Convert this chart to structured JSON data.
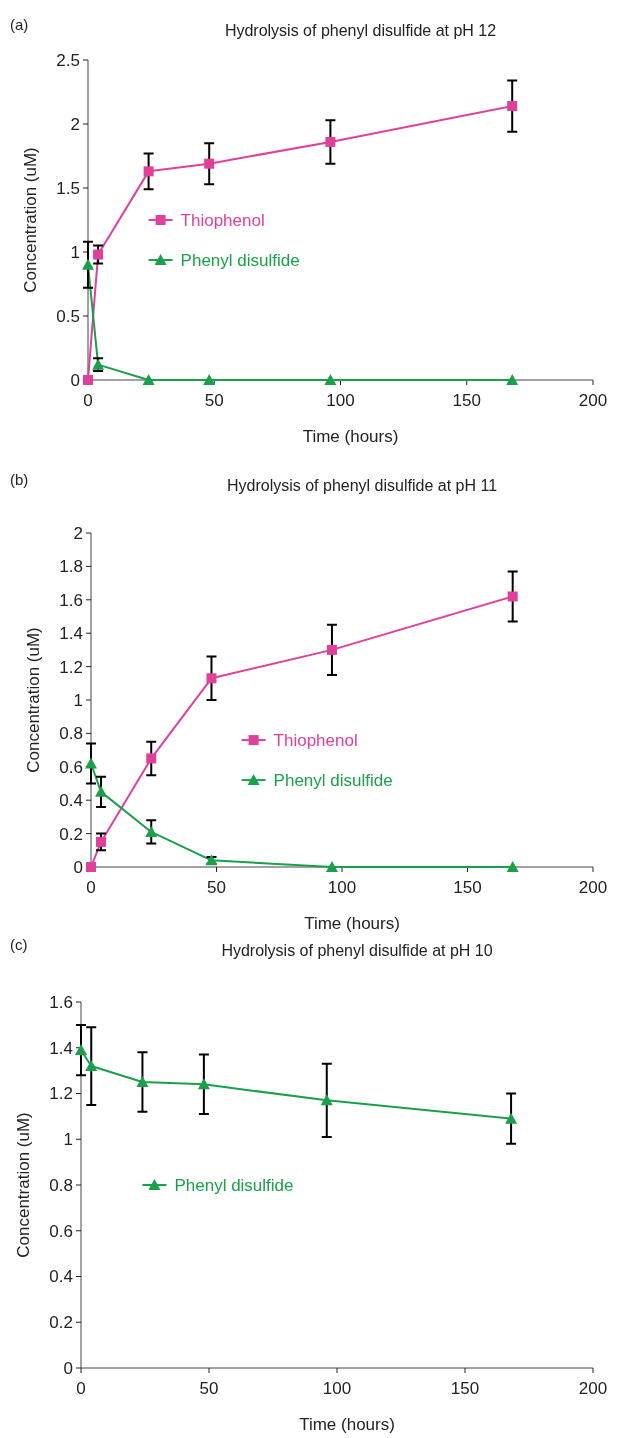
{
  "chart_data": [
    {
      "type": "line",
      "title": "Hydrolysis of phenyl disulfide at pH 12",
      "xlabel": "Time (hours)",
      "ylabel": "Concentration (uM)",
      "annotations": [
        "(a)"
      ],
      "x": [
        0,
        4,
        24,
        48,
        96,
        168
      ],
      "xlim": [
        0,
        200
      ],
      "xticks": [
        0,
        50,
        100,
        150,
        200
      ],
      "ylim": [
        0,
        2.5
      ],
      "yticks": [
        0,
        0.5,
        1,
        1.5,
        2,
        2.5
      ],
      "legend": "center left",
      "line_style": "solid",
      "grid": false,
      "series": [
        {
          "name": "Thiophenol",
          "color": "#e0409a",
          "marker": "square",
          "values": [
            0,
            0.98,
            1.63,
            1.69,
            1.86,
            2.14
          ],
          "errors": [
            null,
            0.07,
            0.14,
            0.16,
            0.17,
            0.2
          ]
        },
        {
          "name": "Phenyl disulfide",
          "color": "#1aa04a",
          "marker": "triangle",
          "values": [
            0.9,
            0.12,
            0,
            0,
            0,
            0
          ],
          "errors": [
            0.18,
            0.05,
            null,
            null,
            null,
            null
          ]
        }
      ]
    },
    {
      "type": "line",
      "title": "Hydrolysis of phenyl disulfide at pH 11",
      "xlabel": "Time (hours)",
      "ylabel": "Concentration (uM)",
      "annotations": [
        "(b)"
      ],
      "x": [
        0,
        4,
        24,
        48,
        96,
        168
      ],
      "xlim": [
        0,
        200
      ],
      "xticks": [
        0,
        50,
        100,
        150,
        200
      ],
      "ylim": [
        0,
        2
      ],
      "yticks": [
        0,
        0.2,
        0.4,
        0.6,
        0.8,
        1,
        1.2,
        1.4,
        1.6,
        1.8,
        2
      ],
      "legend": "center",
      "line_style": "solid",
      "grid": false,
      "series": [
        {
          "name": "Thiophenol",
          "color": "#e0409a",
          "marker": "square",
          "values": [
            0,
            0.15,
            0.65,
            1.13,
            1.3,
            1.62
          ],
          "errors": [
            null,
            0.05,
            0.1,
            0.13,
            0.15,
            0.15
          ]
        },
        {
          "name": "Phenyl disulfide",
          "color": "#1aa04a",
          "marker": "triangle",
          "values": [
            0.62,
            0.45,
            0.21,
            0.04,
            0,
            0
          ],
          "errors": [
            0.12,
            0.09,
            0.07,
            0.02,
            null,
            null
          ]
        }
      ]
    },
    {
      "type": "line",
      "title": "Hydrolysis of phenyl disulfide at pH 10",
      "xlabel": "Time (hours)",
      "ylabel": "Concentration (uM)",
      "annotations": [
        "(c)"
      ],
      "x": [
        0,
        4,
        24,
        48,
        96,
        168
      ],
      "xlim": [
        0,
        200
      ],
      "xticks": [
        0,
        50,
        100,
        150,
        200
      ],
      "ylim": [
        0,
        1.6
      ],
      "yticks": [
        0,
        0.2,
        0.4,
        0.6,
        0.8,
        1,
        1.2,
        1.4,
        1.6
      ],
      "legend": "center left",
      "line_style": "solid",
      "grid": false,
      "series": [
        {
          "name": "Phenyl disulfide",
          "color": "#1aa04a",
          "marker": "triangle",
          "values": [
            1.39,
            1.32,
            1.25,
            1.24,
            1.17,
            1.09
          ],
          "errors": [
            0.11,
            0.17,
            0.13,
            0.13,
            0.16,
            0.11
          ]
        }
      ]
    }
  ]
}
